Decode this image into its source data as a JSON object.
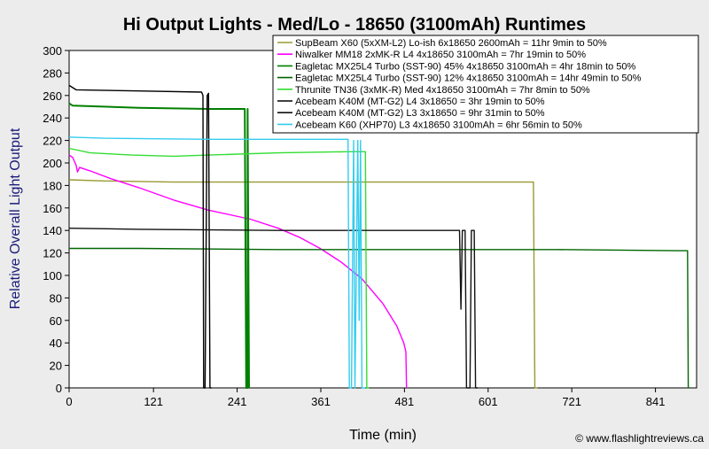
{
  "chart_data": {
    "type": "line",
    "title": "Hi Output Lights - Med/Lo - 18650 (3100mAh) Runtimes",
    "xlabel": "Time (min)",
    "ylabel": "Relative Overall Light Output",
    "xlim": [
      0,
      900
    ],
    "ylim": [
      0,
      300
    ],
    "x_ticks": [
      0,
      121,
      241,
      361,
      481,
      601,
      721,
      841
    ],
    "y_ticks": [
      0,
      20,
      40,
      60,
      80,
      100,
      120,
      140,
      160,
      180,
      200,
      220,
      240,
      260,
      280,
      300
    ],
    "legend_position": "top-right",
    "credit": "© www.flashlightreviews.ca",
    "series": [
      {
        "name": "SupBeam X60 (5xXM-L2) Lo-ish 6x18650 2600mAh = 11hr 9min to 50%",
        "color": "#999933",
        "points": [
          [
            0,
            185
          ],
          [
            50,
            184
          ],
          [
            150,
            183
          ],
          [
            300,
            183
          ],
          [
            450,
            183
          ],
          [
            600,
            183
          ],
          [
            666,
            183
          ],
          [
            668,
            0
          ],
          [
            672,
            0
          ]
        ]
      },
      {
        "name": "Niwalker MM18 2xMK-R L4 4x18650 3100mAh = 7hr 19min to 50%",
        "color": "#ff00ff",
        "points": [
          [
            0,
            207
          ],
          [
            5,
            205
          ],
          [
            10,
            198
          ],
          [
            12,
            192
          ],
          [
            15,
            196
          ],
          [
            30,
            193
          ],
          [
            60,
            186
          ],
          [
            100,
            178
          ],
          [
            150,
            167
          ],
          [
            200,
            158
          ],
          [
            260,
            150
          ],
          [
            300,
            142
          ],
          [
            330,
            134
          ],
          [
            360,
            124
          ],
          [
            390,
            112
          ],
          [
            420,
            97
          ],
          [
            450,
            75
          ],
          [
            470,
            55
          ],
          [
            480,
            40
          ],
          [
            483,
            32
          ],
          [
            484,
            0
          ]
        ]
      },
      {
        "name": "Eagletac MX25L4 Turbo (SST-90) 45% 4x18650 3100mAh = 4hr 18min to 50%",
        "color": "#008000",
        "points": [
          [
            0,
            253
          ],
          [
            5,
            251
          ],
          [
            100,
            249
          ],
          [
            200,
            248
          ],
          [
            252,
            248
          ],
          [
            254,
            0
          ],
          [
            256,
            0
          ],
          [
            256,
            248
          ],
          [
            258,
            0
          ]
        ]
      },
      {
        "name": "Eagletac MX25L4 Turbo (SST-90) 12% 4x18650 3100mAh = 14hr 49min to 50%",
        "color": "#006600",
        "points": [
          [
            0,
            124
          ],
          [
            100,
            124
          ],
          [
            300,
            123
          ],
          [
            500,
            123
          ],
          [
            700,
            123
          ],
          [
            880,
            122
          ],
          [
            887,
            122
          ],
          [
            888,
            0
          ],
          [
            889,
            0
          ]
        ]
      },
      {
        "name": "Thrunite TN36 (3xMK-R) Med 4x18650 3100mAh = 7hr 8min to 50%",
        "color": "#33dd33",
        "points": [
          [
            0,
            213
          ],
          [
            30,
            209
          ],
          [
            60,
            208
          ],
          [
            90,
            207
          ],
          [
            150,
            206
          ],
          [
            200,
            207
          ],
          [
            300,
            209
          ],
          [
            400,
            210
          ],
          [
            425,
            210
          ],
          [
            427,
            0
          ],
          [
            430,
            0
          ]
        ]
      },
      {
        "name": "Acebeam K40M (MT-G2) L4 3x18650 = 3hr 19min to 50%",
        "color": "#000000",
        "points": [
          [
            0,
            269
          ],
          [
            10,
            265
          ],
          [
            100,
            264
          ],
          [
            190,
            263
          ],
          [
            192,
            260
          ],
          [
            193,
            0
          ],
          [
            195,
            0
          ],
          [
            198,
            260
          ],
          [
            200,
            262
          ],
          [
            202,
            0
          ],
          [
            204,
            0
          ]
        ]
      },
      {
        "name": "Acebeam K40M (MT-G2) L3 3x18650 = 9hr 31min to 50%",
        "color": "#111111",
        "points": [
          [
            0,
            142
          ],
          [
            100,
            141
          ],
          [
            300,
            140
          ],
          [
            450,
            140
          ],
          [
            560,
            140
          ],
          [
            562,
            70
          ],
          [
            564,
            140
          ],
          [
            568,
            140
          ],
          [
            570,
            0
          ],
          [
            575,
            0
          ],
          [
            577,
            140
          ],
          [
            581,
            140
          ],
          [
            583,
            0
          ],
          [
            586,
            0
          ]
        ]
      },
      {
        "name": "Acebeam K60 (XHP70) L3 4x18650 3100mAh = 6hr 56min to 50%",
        "color": "#33ccee",
        "points": [
          [
            0,
            223
          ],
          [
            50,
            222
          ],
          [
            200,
            221
          ],
          [
            400,
            221
          ],
          [
            402,
            0
          ],
          [
            405,
            0
          ],
          [
            408,
            220
          ],
          [
            410,
            0
          ],
          [
            414,
            220
          ],
          [
            416,
            60
          ],
          [
            418,
            220
          ],
          [
            420,
            0
          ],
          [
            425,
            0
          ]
        ]
      }
    ]
  }
}
